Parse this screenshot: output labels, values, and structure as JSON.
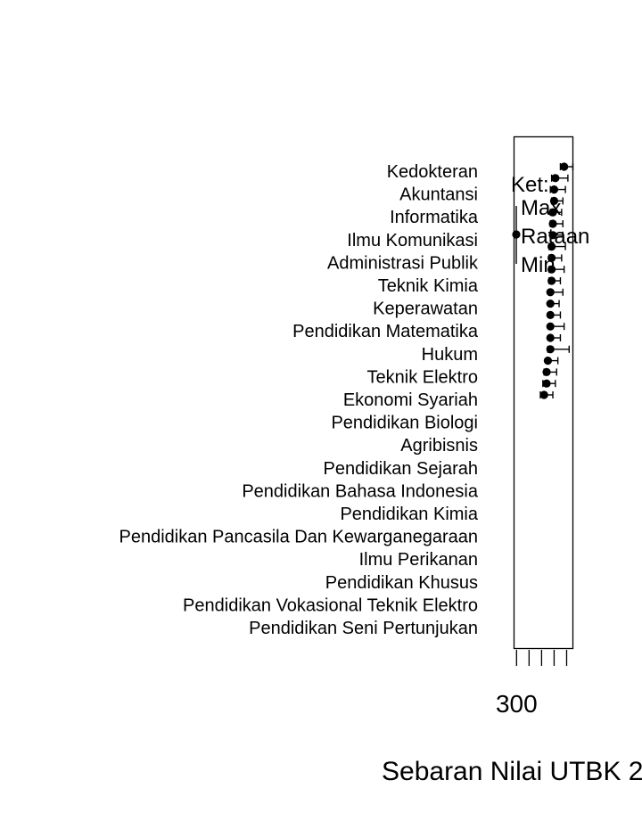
{
  "chart_data": {
    "type": "errorbar-dotplot",
    "title": "",
    "xlabel": "Sebaran Nilai UTBK 2",
    "ylabel": "",
    "xlim": [
      298,
      345
    ],
    "x_ticks": [
      {
        "value": 300,
        "label": "300"
      },
      {
        "value": 310,
        "label": ""
      },
      {
        "value": 320,
        "label": ""
      },
      {
        "value": 330,
        "label": ""
      },
      {
        "value": 340,
        "label": ""
      }
    ],
    "legend": {
      "title": "Ket:",
      "entries": [
        "Max",
        "Rataan",
        "Min"
      ]
    },
    "series": [
      {
        "category": "Kedokteran",
        "mean": 338,
        "min": 335,
        "max": 345
      },
      {
        "category": "Akuntansi",
        "mean": 331,
        "min": 328,
        "max": 341
      },
      {
        "category": "Informatika",
        "mean": 330,
        "min": 327,
        "max": 339
      },
      {
        "category": "Ilmu Komunikasi",
        "mean": 330,
        "min": 328,
        "max": 337
      },
      {
        "category": "Administrasi Publik",
        "mean": 329,
        "min": 327,
        "max": 336
      },
      {
        "category": "Teknik Kimia",
        "mean": 329,
        "min": 327,
        "max": 337
      },
      {
        "category": "Keperawatan",
        "mean": 329,
        "min": 327,
        "max": 337
      },
      {
        "category": "Pendidikan Matematika",
        "mean": 328,
        "min": 326,
        "max": 339
      },
      {
        "category": "Hukum",
        "mean": 328,
        "min": 326,
        "max": 336
      },
      {
        "category": "Teknik Elektro",
        "mean": 328,
        "min": 326,
        "max": 338
      },
      {
        "category": "Ekonomi Syariah",
        "mean": 328,
        "min": 326,
        "max": 335
      },
      {
        "category": "Pendidikan Biologi",
        "mean": 327,
        "min": 326,
        "max": 337
      },
      {
        "category": "Agribisnis",
        "mean": 327,
        "min": 326,
        "max": 334
      },
      {
        "category": "Pendidikan Sejarah",
        "mean": 327,
        "min": 326,
        "max": 335
      },
      {
        "category": "Pendidikan Bahasa Indonesia",
        "mean": 327,
        "min": 326,
        "max": 338
      },
      {
        "category": "Pendidikan Kimia",
        "mean": 327,
        "min": 326,
        "max": 335
      },
      {
        "category": "Pendidikan Pancasila Dan Kewarganegaraan",
        "mean": 327,
        "min": 325,
        "max": 342
      },
      {
        "category": "Ilmu Perikanan",
        "mean": 325,
        "min": 324,
        "max": 333
      },
      {
        "category": "Pendidikan Khusus",
        "mean": 324,
        "min": 322,
        "max": 332
      },
      {
        "category": "Pendidikan Vokasional Teknik Elektro",
        "mean": 324,
        "min": 321,
        "max": 331
      },
      {
        "category": "Pendidikan Seni Pertunjukan",
        "mean": 322,
        "min": 319,
        "max": 329
      }
    ]
  }
}
